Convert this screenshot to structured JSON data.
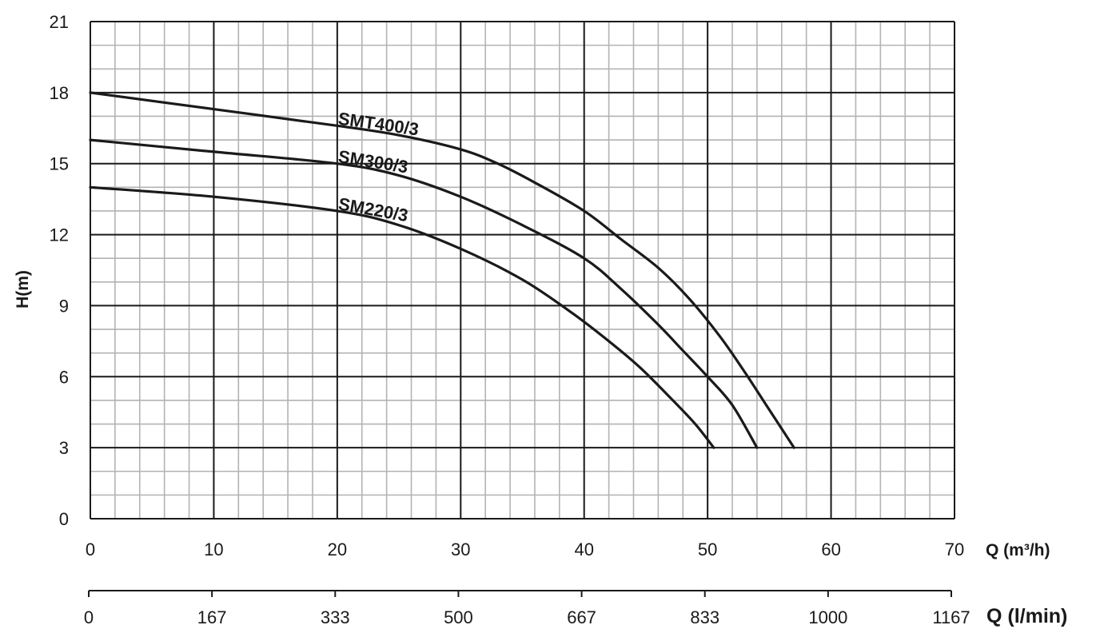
{
  "chart_data": {
    "type": "line",
    "title": "",
    "ylabel": "H(m)",
    "xlabel": "Q (m³/h)",
    "x2label": "Q (l/min)",
    "xlim": [
      0,
      70
    ],
    "ylim": [
      0,
      21
    ],
    "x_ticks": [
      "0",
      "10",
      "20",
      "30",
      "40",
      "50",
      "60",
      "70"
    ],
    "x_tick_values": [
      0,
      10,
      20,
      30,
      40,
      50,
      60,
      70
    ],
    "x2_ticks": [
      "0",
      "167",
      "333",
      "500",
      "667",
      "833",
      "1000",
      "1167"
    ],
    "y_ticks": [
      "0",
      "3",
      "6",
      "9",
      "12",
      "15",
      "18",
      "21"
    ],
    "y_tick_values": [
      0,
      3,
      6,
      9,
      12,
      15,
      18,
      21
    ],
    "grid": true,
    "major_grid_x_step": 10,
    "minor_grid_x_step": 2,
    "major_grid_y_step": 3,
    "minor_grid_y_step": 1,
    "colors": {
      "curve": "#1a1a1a",
      "major_grid": "#1a1a1a",
      "minor_grid": "#b3b3b3"
    },
    "series": [
      {
        "name": "SMT400/3",
        "label_anchor": [
          20,
          16.6
        ],
        "label_angle": -8,
        "x": [
          0,
          10,
          20,
          25,
          30,
          33,
          36,
          40,
          43,
          46,
          48.5,
          51,
          53,
          55,
          57
        ],
        "y": [
          18,
          17.3,
          16.6,
          16.2,
          15.6,
          15,
          14.2,
          13,
          11.8,
          10.6,
          9.3,
          7.7,
          6.2,
          4.6,
          3
        ]
      },
      {
        "name": "SM300/3",
        "label_anchor": [
          20,
          15.0
        ],
        "label_angle": -9,
        "x": [
          0,
          10,
          20,
          25,
          30,
          35,
          40,
          43,
          46,
          48,
          50,
          52,
          54
        ],
        "y": [
          16,
          15.5,
          15,
          14.5,
          13.6,
          12.4,
          11,
          9.7,
          8.2,
          7.1,
          6,
          4.8,
          3
        ]
      },
      {
        "name": "SM220/3",
        "label_anchor": [
          20,
          13.0
        ],
        "label_angle": -10,
        "x": [
          0,
          10,
          20,
          25,
          30,
          35,
          39,
          42,
          44.5,
          47,
          49,
          50.5
        ],
        "y": [
          14,
          13.6,
          13,
          12.4,
          11.4,
          10.1,
          8.7,
          7.5,
          6.4,
          5.1,
          4,
          3
        ]
      }
    ]
  }
}
